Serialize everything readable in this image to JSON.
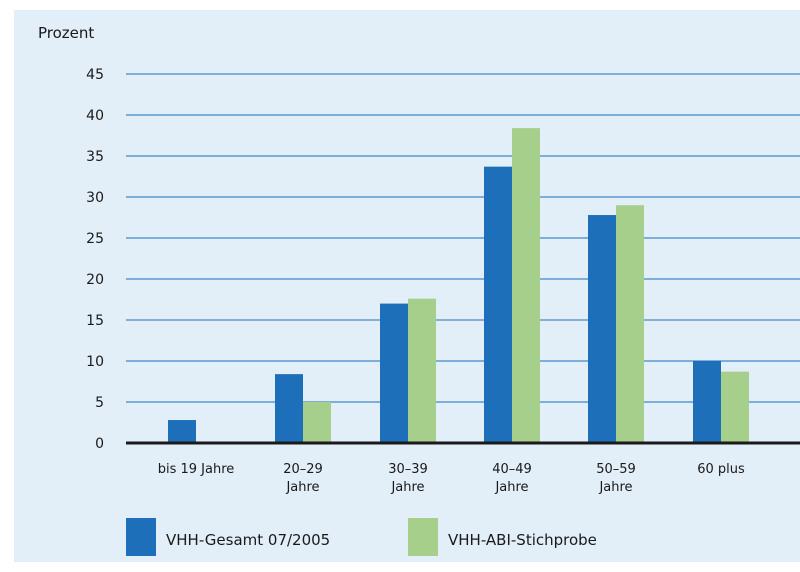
{
  "chart_data": {
    "type": "bar",
    "y_unit_label": "Prozent",
    "categories": [
      [
        "bis 19 Jahre"
      ],
      [
        "20–29",
        "Jahre"
      ],
      [
        "30–39",
        "Jahre"
      ],
      [
        "40–49",
        "Jahre"
      ],
      [
        "50–59",
        "Jahre"
      ],
      [
        "60 plus"
      ]
    ],
    "series": [
      {
        "name": "VHH-Gesamt 07/2005",
        "color": "#1c6fb8",
        "values": [
          2.8,
          8.4,
          17.0,
          33.7,
          27.8,
          10.0
        ]
      },
      {
        "name": "VHH-ABI-Stichprobe",
        "color": "#a6cf8c",
        "values": [
          0,
          5.0,
          17.6,
          38.4,
          29.0,
          8.7
        ]
      }
    ],
    "ylim": [
      0,
      45
    ],
    "yticks": [
      0,
      5,
      10,
      15,
      20,
      25,
      30,
      35,
      40,
      45
    ],
    "grid": true,
    "grid_color": "#1c6fb8",
    "background_color": "#e2eef8",
    "legend_position": "bottom-left"
  }
}
